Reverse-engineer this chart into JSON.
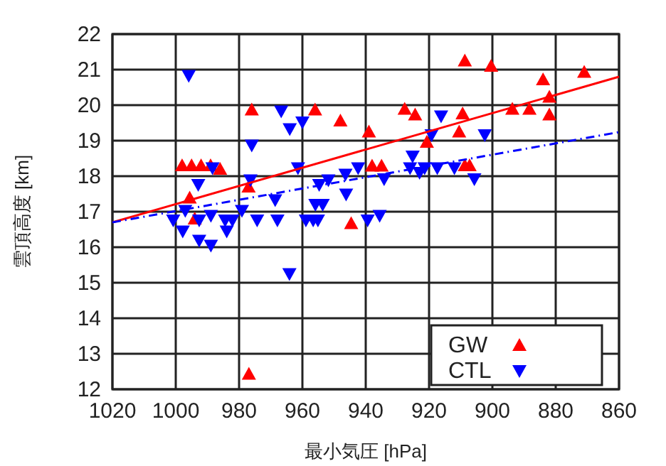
{
  "chart_data": {
    "type": "scatter",
    "xlabel": "最小気圧 [hPa]",
    "ylabel": "雲頂高度 [km]",
    "xlim": [
      1020,
      860
    ],
    "xticks": [
      1020,
      1000,
      980,
      960,
      940,
      920,
      900,
      880,
      860
    ],
    "ylim": [
      12,
      22
    ],
    "yticks": [
      12,
      13,
      14,
      15,
      16,
      17,
      18,
      19,
      20,
      21,
      22
    ],
    "grid": true,
    "legend": "bottom right",
    "series": [
      {
        "name": "GW",
        "color": "#ff0000",
        "marker": "triangle",
        "x": [
          998,
          995,
          992,
          989,
          986,
          976,
          956,
          948,
          995.6,
          977,
          939,
          908.7,
          900.4,
          884,
          871,
          882,
          882,
          927.7,
          924.4,
          893.7,
          888.3,
          909.4,
          910.5,
          920.7,
          938,
          935,
          908.7,
          907.2,
          994,
          944.6,
          976.9
        ],
        "values": [
          18.3,
          18.3,
          18.3,
          18.3,
          18.2,
          19.87,
          19.87,
          19.56,
          17.39,
          17.7,
          19.25,
          21.25,
          21.1,
          20.72,
          20.93,
          20.23,
          19.73,
          19.89,
          19.73,
          19.89,
          19.89,
          19.76,
          19.25,
          18.96,
          18.29,
          18.29,
          18.3,
          18.3,
          16.8,
          16.67,
          12.43
        ]
      },
      {
        "name": "CTL",
        "color": "#0000ff",
        "marker": "triangle_down",
        "x": [
          995.9,
          966.7,
          964,
          960,
          976,
          988.4,
          992.9,
          961.4,
          976.4,
          968.6,
          954.7,
          951.8,
          946.4,
          942.4,
          946.2,
          955.9,
          953.6,
          916.2,
          919.2,
          902.4,
          925.2,
          926,
          923,
          921.4,
          917.4,
          912,
          934.2,
          905.7,
          939.4,
          935.6,
          1000.8,
          997.8,
          997,
          992.6,
          988.9,
          992.6,
          988.9,
          984.4,
          982.1,
          983.9,
          979.1,
          974.3,
          967.9,
          964.1,
          958.9,
          956.6,
          955.1
        ],
        "values": [
          20.83,
          19.83,
          19.33,
          19.52,
          18.87,
          18.23,
          17.76,
          18.23,
          17.89,
          17.33,
          17.76,
          17.89,
          18.05,
          18.23,
          17.49,
          17.2,
          17.2,
          19.69,
          19.16,
          19.16,
          18.56,
          18.23,
          18.1,
          18.23,
          18.23,
          18.23,
          17.92,
          17.92,
          16.76,
          16.89,
          16.76,
          16.45,
          17.03,
          16.76,
          16.89,
          16.19,
          16.05,
          16.76,
          16.76,
          16.45,
          17.03,
          16.76,
          16.76,
          15.25,
          16.76,
          16.76,
          16.76
        ]
      },
      {
        "type": "line",
        "color": "#ff0000",
        "line_style": "solid",
        "x": [
          1020,
          860
        ],
        "values": [
          16.7,
          20.8
        ]
      },
      {
        "type": "line",
        "color": "#0000ff",
        "line_style": "dashed",
        "x": [
          1020,
          860
        ],
        "values": [
          16.7,
          19.24
        ]
      }
    ]
  }
}
